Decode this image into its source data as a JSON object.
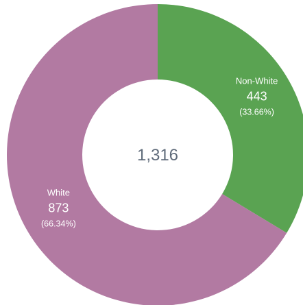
{
  "chart_data": {
    "type": "pie",
    "variant": "donut",
    "total": "1,316",
    "slices": [
      {
        "name": "Non-White",
        "value": 443,
        "value_label": "443",
        "percent_label": "(33.66%)",
        "color": "#5aa352"
      },
      {
        "name": "White",
        "value": 873,
        "value_label": "873",
        "percent_label": "(66.34%)",
        "color": "#b27aa2"
      }
    ],
    "legend": "none"
  }
}
